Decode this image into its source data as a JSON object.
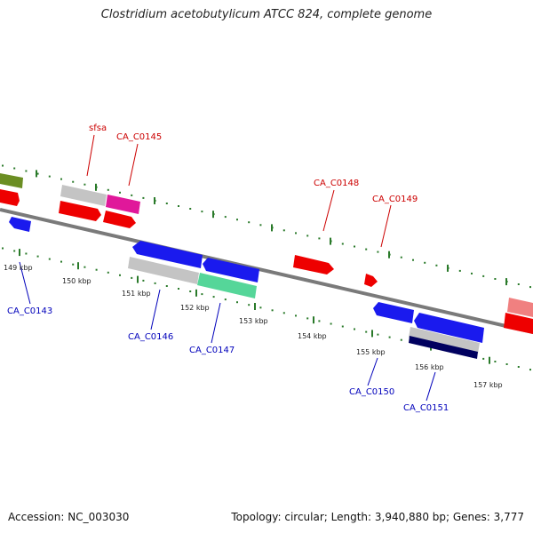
{
  "title": "Clostridium acetobutylicum ATCC 824, complete genome",
  "footer": {
    "accession": "Accession: NC_003030",
    "summary": "Topology: circular; Length: 3,940,880 bp; Genes: 3,777"
  },
  "colors": {
    "backbone": "#777777",
    "forward_label": "#cc0000",
    "reverse_label": "#0000bb",
    "tick": "#2a7a2a",
    "red": "#ee0000",
    "blue": "#1a1aee",
    "gray": "#bdbdbd",
    "pink": "#e0189a",
    "green": "#55d699",
    "olive": "#6b8e23",
    "navy": "#00005f",
    "salmon": "#f08080"
  },
  "scale_labels": [
    "149 kbp",
    "150 kbp",
    "151 kbp",
    "152 kbp",
    "153 kbp",
    "154 kbp",
    "155 kbp",
    "156 kbp",
    "157 kbp"
  ],
  "forward_gene_labels": [
    "sfsa",
    "CA_C0145",
    "CA_C0148",
    "CA_C0149"
  ],
  "reverse_gene_labels": [
    "CA_C0143",
    "CA_C0146",
    "CA_C0147",
    "CA_C0150",
    "CA_C0151"
  ]
}
